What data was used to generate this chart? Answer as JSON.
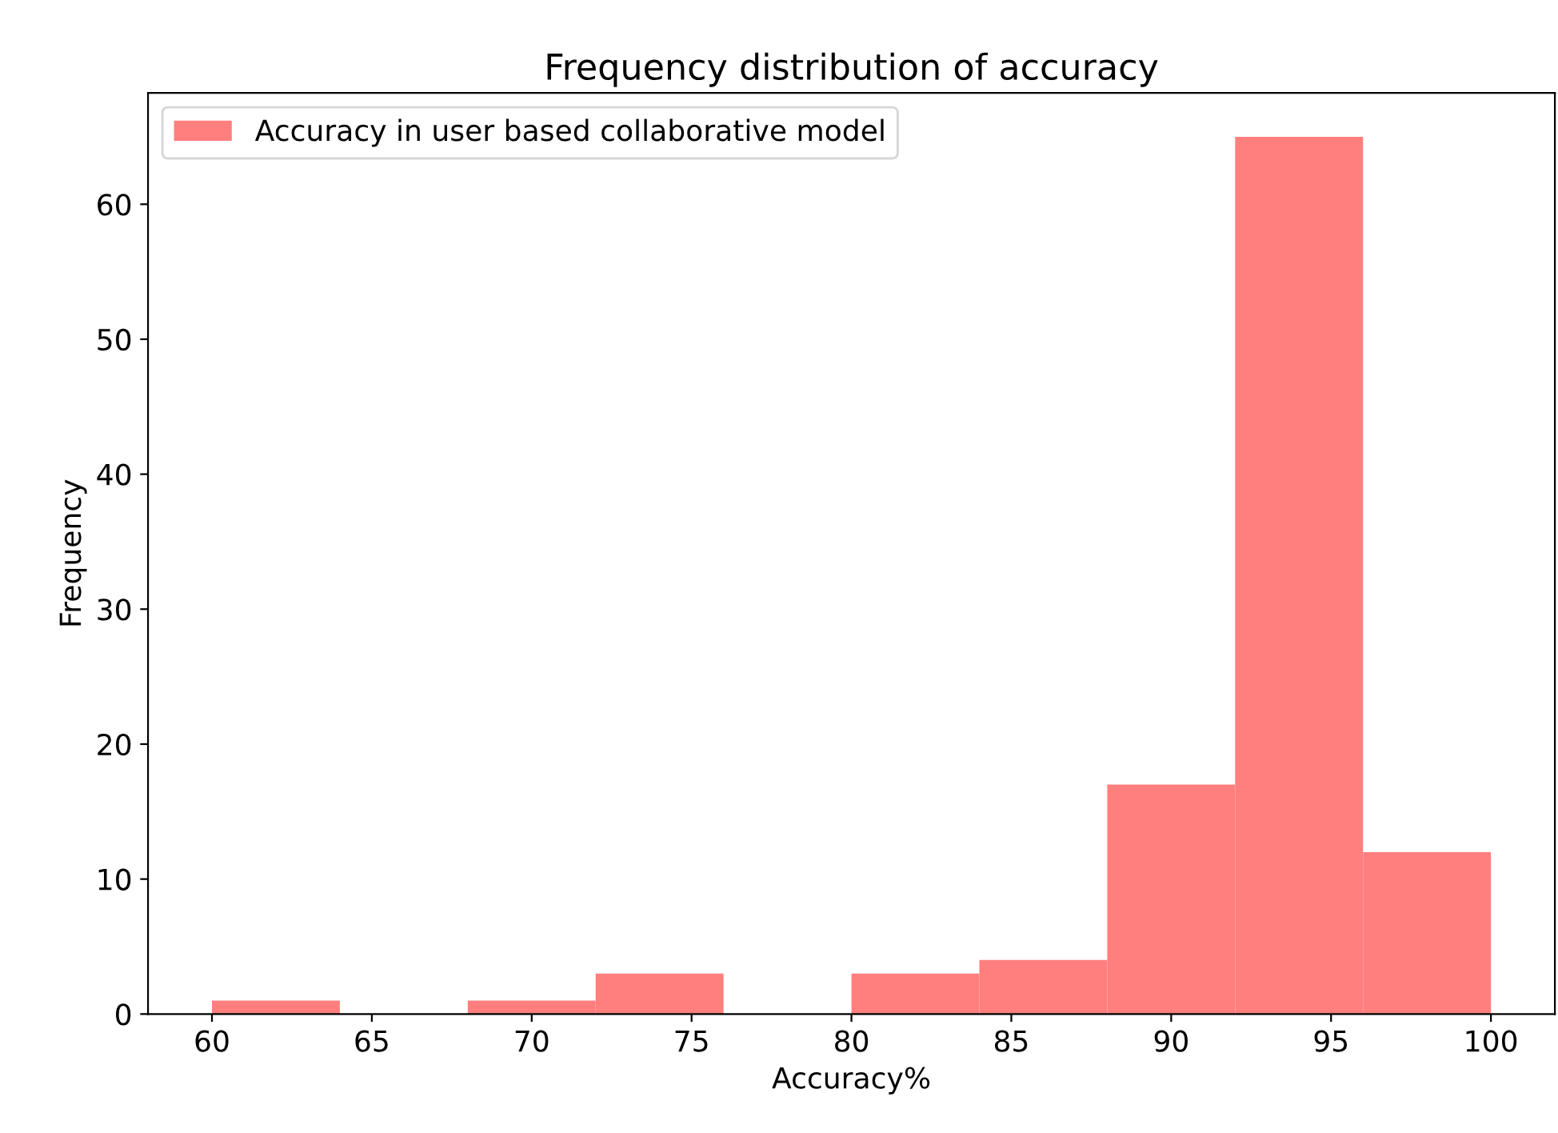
{
  "chart_data": {
    "type": "histogram",
    "title": "Frequency distribution of accuracy",
    "xlabel": "Accuracy%",
    "ylabel": "Frequency",
    "bins": [
      60,
      64,
      68,
      72,
      76,
      80,
      84,
      88,
      92,
      96,
      100
    ],
    "series": [
      {
        "name": "Accuracy in user based collaborative model",
        "color": "#ff7f7f",
        "values": [
          1,
          0,
          1,
          3,
          0,
          3,
          4,
          17,
          65,
          12
        ]
      }
    ],
    "xlim": [
      58,
      102
    ],
    "ylim": [
      0,
      68.25
    ],
    "xticks": [
      60,
      65,
      70,
      75,
      80,
      85,
      90,
      95,
      100
    ],
    "yticks": [
      0,
      10,
      20,
      30,
      40,
      50,
      60
    ],
    "grid": false,
    "legend": "top left"
  }
}
